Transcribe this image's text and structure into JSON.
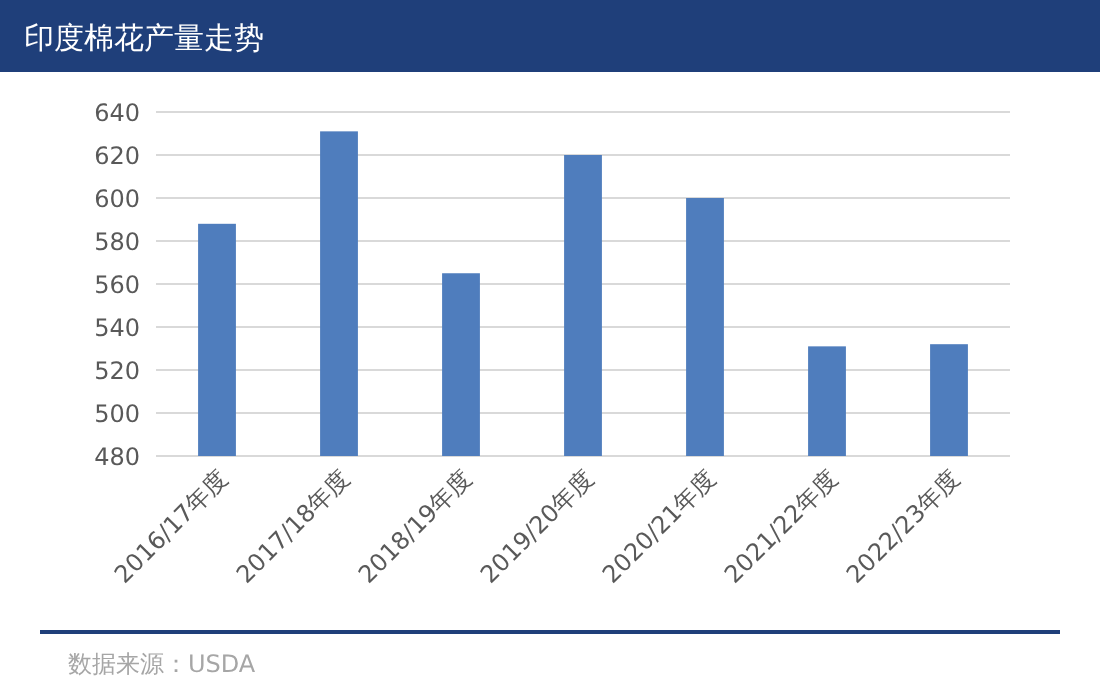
{
  "chart_data": {
    "type": "bar",
    "title": "印度棉花产量走势",
    "categories": [
      "2016/17年度",
      "2017/18年度",
      "2018/19年度",
      "2019/20年度",
      "2020/21年度",
      "2021/22年度",
      "2022/23年度"
    ],
    "values": [
      588,
      631,
      565,
      620,
      600,
      531,
      532
    ],
    "color": "#4f7dbd",
    "ylim": [
      480,
      640
    ],
    "yticks": [
      480,
      500,
      520,
      540,
      560,
      580,
      600,
      620,
      640
    ],
    "grid": "y",
    "annotations": [
      "数据来源：USDA"
    ]
  }
}
